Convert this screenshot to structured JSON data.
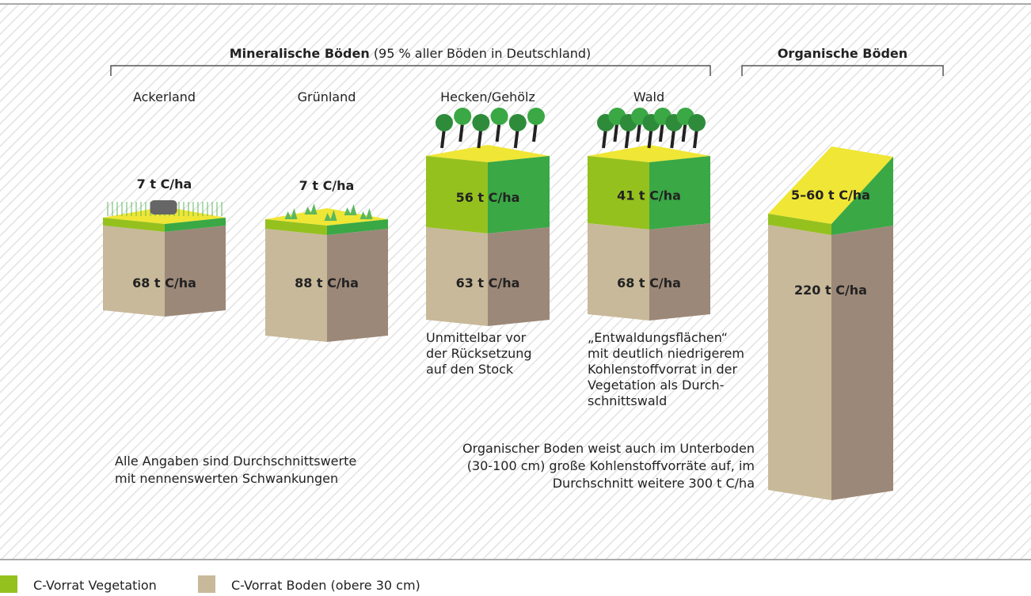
{
  "groups": [
    {
      "title_bold": "Mineralische Böden",
      "title_rest": "(95 % aller Böden in Deutschland)"
    },
    {
      "title_bold": "Organische Böden"
    }
  ],
  "columns": [
    {
      "label": "Ackerland",
      "vegetation": "7 t C/ha",
      "soil": "68 t C/ha"
    },
    {
      "label": "Grünland",
      "vegetation": "7 t C/ha",
      "soil": "88 t C/ha"
    },
    {
      "label": "Hecken/Gehölz",
      "vegetation": "56 t C/ha",
      "soil": "63 t C/ha",
      "note": [
        "Unmittelbar vor",
        "der Rücksetzung",
        "auf den Stock"
      ]
    },
    {
      "label": "Wald",
      "vegetation": "41 t C/ha",
      "soil": "68 t C/ha",
      "note": [
        "„Entwaldungsflächen“",
        "mit deutlich niedrigerem",
        "Kohlenstoffvorrat in der",
        "Vegetation als Durch-",
        "schnittswald"
      ]
    },
    {
      "vegetation": "5–60 t C/ha",
      "soil": "220 t C/ha"
    }
  ],
  "notes": {
    "general": [
      "Alle Angaben sind Durchschnittswerte",
      "mit nennenswerten Schwankungen"
    ],
    "organic": [
      "Organischer Boden weist auch im Unterboden",
      "(30-100 cm) große Kohlenstoffvorräte auf, im",
      "Durchschnitt weitere 300 t C/ha"
    ]
  },
  "legend": [
    {
      "label": "C-Vorrat Vegetation",
      "color": "#95c11f"
    },
    {
      "label": "C-Vorrat Boden (obere 30 cm)",
      "color": "#c8b99a"
    }
  ]
}
